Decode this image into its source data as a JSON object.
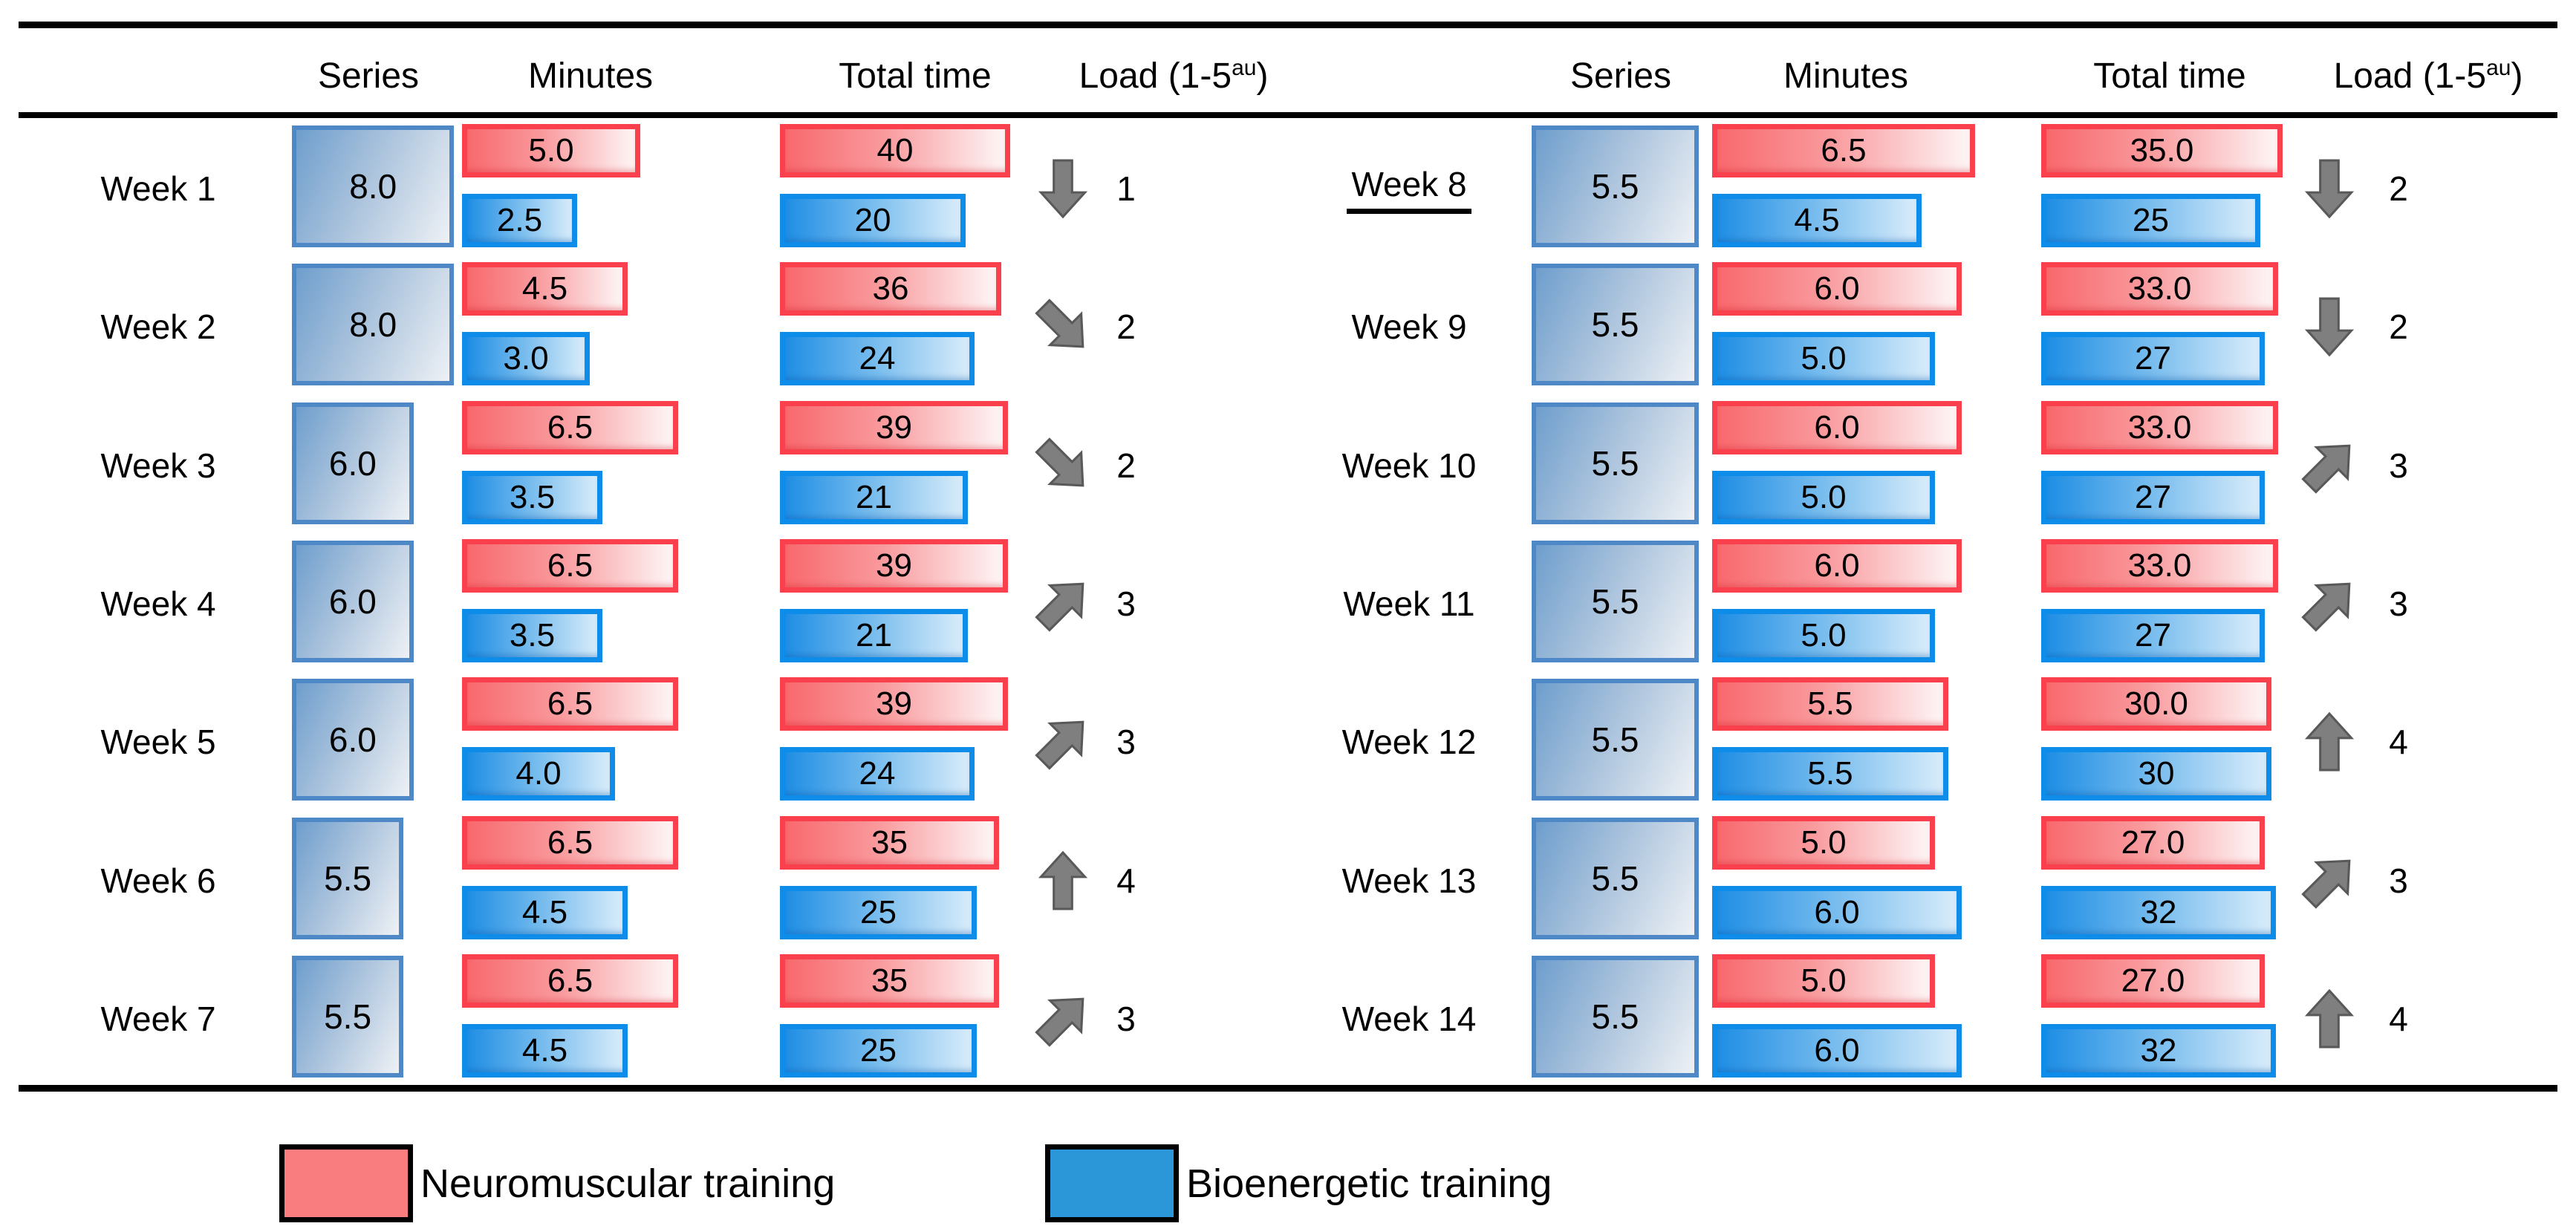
{
  "header": {
    "series": "Series",
    "minutes": "Minutes",
    "total": "Total time",
    "load_prefix": "Load (1-5",
    "load_sup": "au",
    "load_close": ")"
  },
  "legend": [
    {
      "label": "Neuromuscular training",
      "color": "#f97d7f"
    },
    {
      "label": "Bioenergetic training",
      "color": "#2b96d8"
    }
  ],
  "colors": {
    "neuromuscular_border": "#fb404d",
    "neuromuscular_fill_left": "#f8696d",
    "neuromuscular_fill_right": "#fdf4f4",
    "bioenergetic_border": "#0d8de9",
    "bioenergetic_fill_left": "#1f8ee4",
    "bioenergetic_fill_right": "#d8ecfa",
    "series_border": "#4e88c6",
    "series_fill_left": "#6e9ecd",
    "series_fill_right": "#eef1f5",
    "arrow_gray": "#7f7f7f",
    "rule_black": "#000000"
  },
  "weeks": [
    {
      "label": "Week 1",
      "underline": false,
      "series": "8.0",
      "neuro_min": "5.0",
      "bio_min": "2.5",
      "neuro_total": "40",
      "bio_total": "20",
      "trend": "down",
      "load": "1"
    },
    {
      "label": "Week 2",
      "underline": false,
      "series": "8.0",
      "neuro_min": "4.5",
      "bio_min": "3.0",
      "neuro_total": "36",
      "bio_total": "24",
      "trend": "down-right",
      "load": "2"
    },
    {
      "label": "Week 3",
      "underline": false,
      "series": "6.0",
      "neuro_min": "6.5",
      "bio_min": "3.5",
      "neuro_total": "39",
      "bio_total": "21",
      "trend": "down-right",
      "load": "2"
    },
    {
      "label": "Week 4",
      "underline": false,
      "series": "6.0",
      "neuro_min": "6.5",
      "bio_min": "3.5",
      "neuro_total": "39",
      "bio_total": "21",
      "trend": "up-right",
      "load": "3"
    },
    {
      "label": "Week 5",
      "underline": false,
      "series": "6.0",
      "neuro_min": "6.5",
      "bio_min": "4.0",
      "neuro_total": "39",
      "bio_total": "24",
      "trend": "up-right",
      "load": "3"
    },
    {
      "label": "Week 6",
      "underline": false,
      "series": "5.5",
      "neuro_min": "6.5",
      "bio_min": "4.5",
      "neuro_total": "35",
      "bio_total": "25",
      "trend": "up",
      "load": "4"
    },
    {
      "label": "Week 7",
      "underline": false,
      "series": "5.5",
      "neuro_min": "6.5",
      "bio_min": "4.5",
      "neuro_total": "35",
      "bio_total": "25",
      "trend": "up-right",
      "load": "3"
    },
    {
      "label": "Week 8",
      "underline": true,
      "series": "5.5",
      "neuro_min": "6.5",
      "bio_min": "4.5",
      "neuro_total": "35.0",
      "bio_total": "25",
      "trend": "down",
      "load": "2"
    },
    {
      "label": "Week 9",
      "underline": false,
      "series": "5.5",
      "neuro_min": "6.0",
      "bio_min": "5.0",
      "neuro_total": "33.0",
      "bio_total": "27",
      "trend": "down",
      "load": "2"
    },
    {
      "label": "Week 10",
      "underline": false,
      "series": "5.5",
      "neuro_min": "6.0",
      "bio_min": "5.0",
      "neuro_total": "33.0",
      "bio_total": "27",
      "trend": "up-right",
      "load": "3"
    },
    {
      "label": "Week 11",
      "underline": false,
      "series": "5.5",
      "neuro_min": "6.0",
      "bio_min": "5.0",
      "neuro_total": "33.0",
      "bio_total": "27",
      "trend": "up-right",
      "load": "3"
    },
    {
      "label": "Week 12",
      "underline": false,
      "series": "5.5",
      "neuro_min": "5.5",
      "bio_min": "5.5",
      "neuro_total": "30.0",
      "bio_total": "30",
      "trend": "up",
      "load": "4"
    },
    {
      "label": "Week 13",
      "underline": false,
      "series": "5.5",
      "neuro_min": "5.0",
      "bio_min": "6.0",
      "neuro_total": "27.0",
      "bio_total": "32",
      "trend": "up-right",
      "load": "3"
    },
    {
      "label": "Week 14",
      "underline": false,
      "series": "5.5",
      "neuro_min": "5.0",
      "bio_min": "6.0",
      "neuro_total": "27.0",
      "bio_total": "32",
      "trend": "up",
      "load": "4"
    }
  ],
  "chart_data": {
    "type": "bar",
    "orientation": "horizontal",
    "title": "",
    "xlabel": "",
    "ylabel": "",
    "grid": false,
    "legend_position": "bottom",
    "legend_entries": [
      "Neuromuscular training",
      "Bioenergetic training"
    ],
    "categories": [
      "Week 1",
      "Week 2",
      "Week 3",
      "Week 4",
      "Week 5",
      "Week 6",
      "Week 7",
      "Week 8",
      "Week 9",
      "Week 10",
      "Week 11",
      "Week 12",
      "Week 13",
      "Week 14"
    ],
    "series": [
      {
        "name": "Series",
        "values": [
          8.0,
          8.0,
          6.0,
          6.0,
          6.0,
          5.5,
          5.5,
          5.5,
          5.5,
          5.5,
          5.5,
          5.5,
          5.5,
          5.5
        ]
      },
      {
        "name": "Neuromuscular minutes",
        "values": [
          5.0,
          4.5,
          6.5,
          6.5,
          6.5,
          6.5,
          6.5,
          6.5,
          6.0,
          6.0,
          6.0,
          5.5,
          5.0,
          5.0
        ]
      },
      {
        "name": "Bioenergetic minutes",
        "values": [
          2.5,
          3.0,
          3.5,
          3.5,
          4.0,
          4.5,
          4.5,
          4.5,
          5.0,
          5.0,
          5.0,
          5.5,
          6.0,
          6.0
        ]
      },
      {
        "name": "Neuromuscular total time",
        "values": [
          40,
          36,
          39,
          39,
          39,
          35,
          35,
          35,
          33,
          33,
          33,
          30,
          27,
          27
        ]
      },
      {
        "name": "Bioenergetic total time",
        "values": [
          20,
          24,
          21,
          21,
          24,
          25,
          25,
          25,
          27,
          27,
          27,
          30,
          32,
          32
        ]
      },
      {
        "name": "Load (1-5 au)",
        "values": [
          1,
          2,
          2,
          3,
          3,
          4,
          3,
          2,
          2,
          3,
          3,
          4,
          3,
          4
        ]
      }
    ],
    "annotations": {
      "load_trend_arrows": [
        "down",
        "down-right",
        "down-right",
        "up-right",
        "up-right",
        "up",
        "up-right",
        "down",
        "down",
        "up-right",
        "up-right",
        "up",
        "up-right",
        "up"
      ],
      "underlined_category": "Week 8"
    }
  }
}
